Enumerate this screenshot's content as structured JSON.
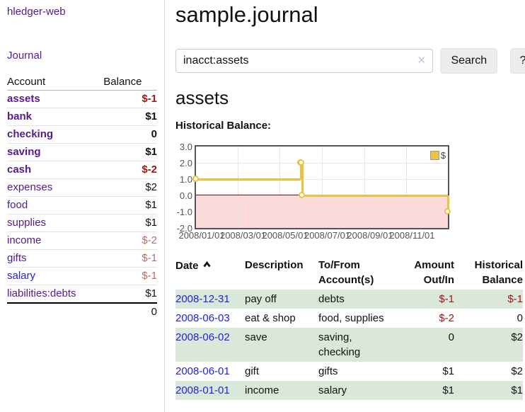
{
  "app": {
    "brand": "hledger-web",
    "nav_journal": "Journal"
  },
  "sidebar": {
    "headers": {
      "account": "Account",
      "balance": "Balance"
    },
    "rows": [
      {
        "name": "assets",
        "balance": "$-1",
        "level": 1
      },
      {
        "name": "bank",
        "balance": "$1",
        "level": 2
      },
      {
        "name": "checking",
        "balance": "0",
        "level": 3
      },
      {
        "name": "saving",
        "balance": "$1",
        "level": 3
      },
      {
        "name": "cash",
        "balance": "$-2",
        "level": 2
      },
      {
        "name": "expenses",
        "balance": "$2",
        "level": 1
      },
      {
        "name": "food",
        "balance": "$1",
        "level": 2
      },
      {
        "name": "supplies",
        "balance": "$1",
        "level": 2
      },
      {
        "name": "income",
        "balance": "$-2",
        "level": 1
      },
      {
        "name": "gifts",
        "balance": "$-1",
        "level": 2
      },
      {
        "name": "salary",
        "balance": "$-1",
        "level": 2
      },
      {
        "name": "liabilities:debts",
        "balance": "$1",
        "level": 1
      }
    ],
    "total": "0"
  },
  "main": {
    "title": "sample.journal",
    "search": {
      "value": "inacct:assets",
      "clear_icon": "✕",
      "search_label": "Search",
      "help_label": "?"
    },
    "account_heading": "assets",
    "section_label": "Historical Balance:"
  },
  "chart_data": {
    "type": "line",
    "step": true,
    "title": "Historical Balance",
    "series": [
      {
        "name": "$",
        "color": "#edc240",
        "points": [
          [
            "2008-01-01",
            1
          ],
          [
            "2008-06-01",
            2
          ],
          [
            "2008-06-02",
            2
          ],
          [
            "2008-06-03",
            0
          ],
          [
            "2008-12-31",
            -1
          ]
        ]
      }
    ],
    "xlim": [
      "2008-01-01",
      "2008-12-31"
    ],
    "ylim": [
      -2,
      3
    ],
    "y_tick_labels": [
      "3.0",
      "2.0",
      "1.0",
      "0.0",
      "-1.0",
      "-2.0"
    ],
    "x_tick_labels": [
      "2008/01/01",
      "2008/03/01",
      "2008/05/01",
      "2008/07/01",
      "2008/09/01",
      "2008/11/01"
    ],
    "grid": true,
    "legend_position": "top-right",
    "negative_region_color": "#fcdada",
    "zero_line_color": "#8b0000"
  },
  "register": {
    "headers": {
      "date": "Date",
      "description": "Description",
      "tofrom": "To/From Account(s)",
      "amount": "Amount Out/In",
      "balance": "Historical Balance"
    },
    "rows": [
      {
        "date": "2008-12-31",
        "description": "pay off",
        "accounts": "debts",
        "amount": "$-1",
        "balance": "$-1"
      },
      {
        "date": "2008-06-03",
        "description": "eat & shop",
        "accounts": "food, supplies",
        "amount": "$-2",
        "balance": "0"
      },
      {
        "date": "2008-06-02",
        "description": "save",
        "accounts": "saving, checking",
        "amount": "0",
        "balance": "$2"
      },
      {
        "date": "2008-06-01",
        "description": "gift",
        "accounts": "gifts",
        "amount": "$1",
        "balance": "$2"
      },
      {
        "date": "2008-01-01",
        "description": "income",
        "accounts": "salary",
        "amount": "$1",
        "balance": "$1"
      }
    ]
  },
  "icons": {
    "sort_ascending": "chevron-up",
    "clear_search": "x-mark",
    "legend_swatch": "yellow-square"
  },
  "colors": {
    "visited_link_purple": "#551a8b",
    "link_blue": "#2222dd",
    "negative_strong": "#9c1616",
    "negative_light": "#b96b6b",
    "row_stripe_green": "#d9e8d9",
    "chart_line_yellow": "#edc240",
    "chart_negative_fill": "#fcdada",
    "chart_zero_line": "#8b0000",
    "chart_border": "#545454",
    "button_bg": "#ececec"
  }
}
